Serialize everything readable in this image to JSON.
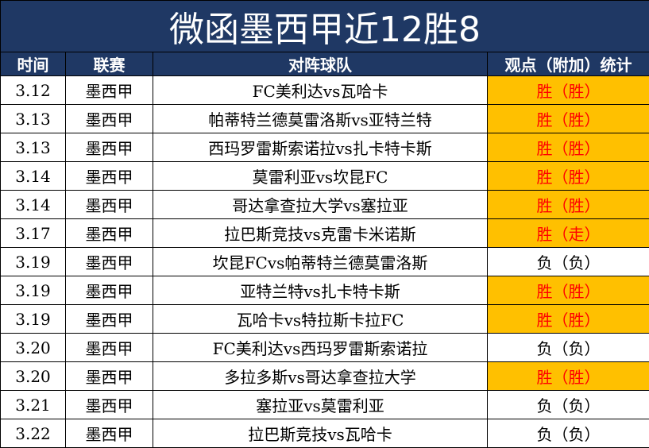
{
  "title": "微函墨西甲近12胜8",
  "headers": [
    "时间",
    "联赛",
    "对阵球队",
    "观点（附加）统计"
  ],
  "colors": {
    "header_bg": "#1f3864",
    "win_bg": "#ffc000",
    "win_text": "#ff0000"
  },
  "rows": [
    {
      "date": "3.12",
      "league": "墨西甲",
      "match": "FC美利达vs瓦哈卡",
      "result": "胜（胜）",
      "status": "win"
    },
    {
      "date": "3.13",
      "league": "墨西甲",
      "match": "帕蒂特兰德莫雷洛斯vs亚特兰特",
      "result": "胜（胜）",
      "status": "win"
    },
    {
      "date": "3.13",
      "league": "墨西甲",
      "match": "西玛罗雷斯索诺拉vs扎卡特卡斯",
      "result": "胜（胜）",
      "status": "win"
    },
    {
      "date": "3.14",
      "league": "墨西甲",
      "match": "莫雷利亚vs坎昆FC",
      "result": "胜（胜）",
      "status": "win"
    },
    {
      "date": "3.14",
      "league": "墨西甲",
      "match": "哥达拿查拉大学vs塞拉亚",
      "result": "胜（胜）",
      "status": "win"
    },
    {
      "date": "3.17",
      "league": "墨西甲",
      "match": "拉巴斯竞技vs克雷卡米诺斯",
      "result": "胜（走）",
      "status": "win"
    },
    {
      "date": "3.19",
      "league": "墨西甲",
      "match": "坎昆FCvs帕蒂特兰德莫雷洛斯",
      "result": "负（负）",
      "status": "loss"
    },
    {
      "date": "3.19",
      "league": "墨西甲",
      "match": "亚特兰特vs扎卡特卡斯",
      "result": "胜（胜）",
      "status": "win"
    },
    {
      "date": "3.19",
      "league": "墨西甲",
      "match": "瓦哈卡vs特拉斯卡拉FC",
      "result": "胜（胜）",
      "status": "win"
    },
    {
      "date": "3.20",
      "league": "墨西甲",
      "match": "FC美利达vs西玛罗雷斯索诺拉",
      "result": "负（负）",
      "status": "loss"
    },
    {
      "date": "3.20",
      "league": "墨西甲",
      "match": "多拉多斯vs哥达拿查拉大学",
      "result": "胜（胜）",
      "status": "win"
    },
    {
      "date": "3.21",
      "league": "墨西甲",
      "match": "塞拉亚vs莫雷利亚",
      "result": "负（负）",
      "status": "loss"
    },
    {
      "date": "3.22",
      "league": "墨西甲",
      "match": "拉巴斯竞技vs瓦哈卡",
      "result": "负（负）",
      "status": "loss"
    }
  ]
}
